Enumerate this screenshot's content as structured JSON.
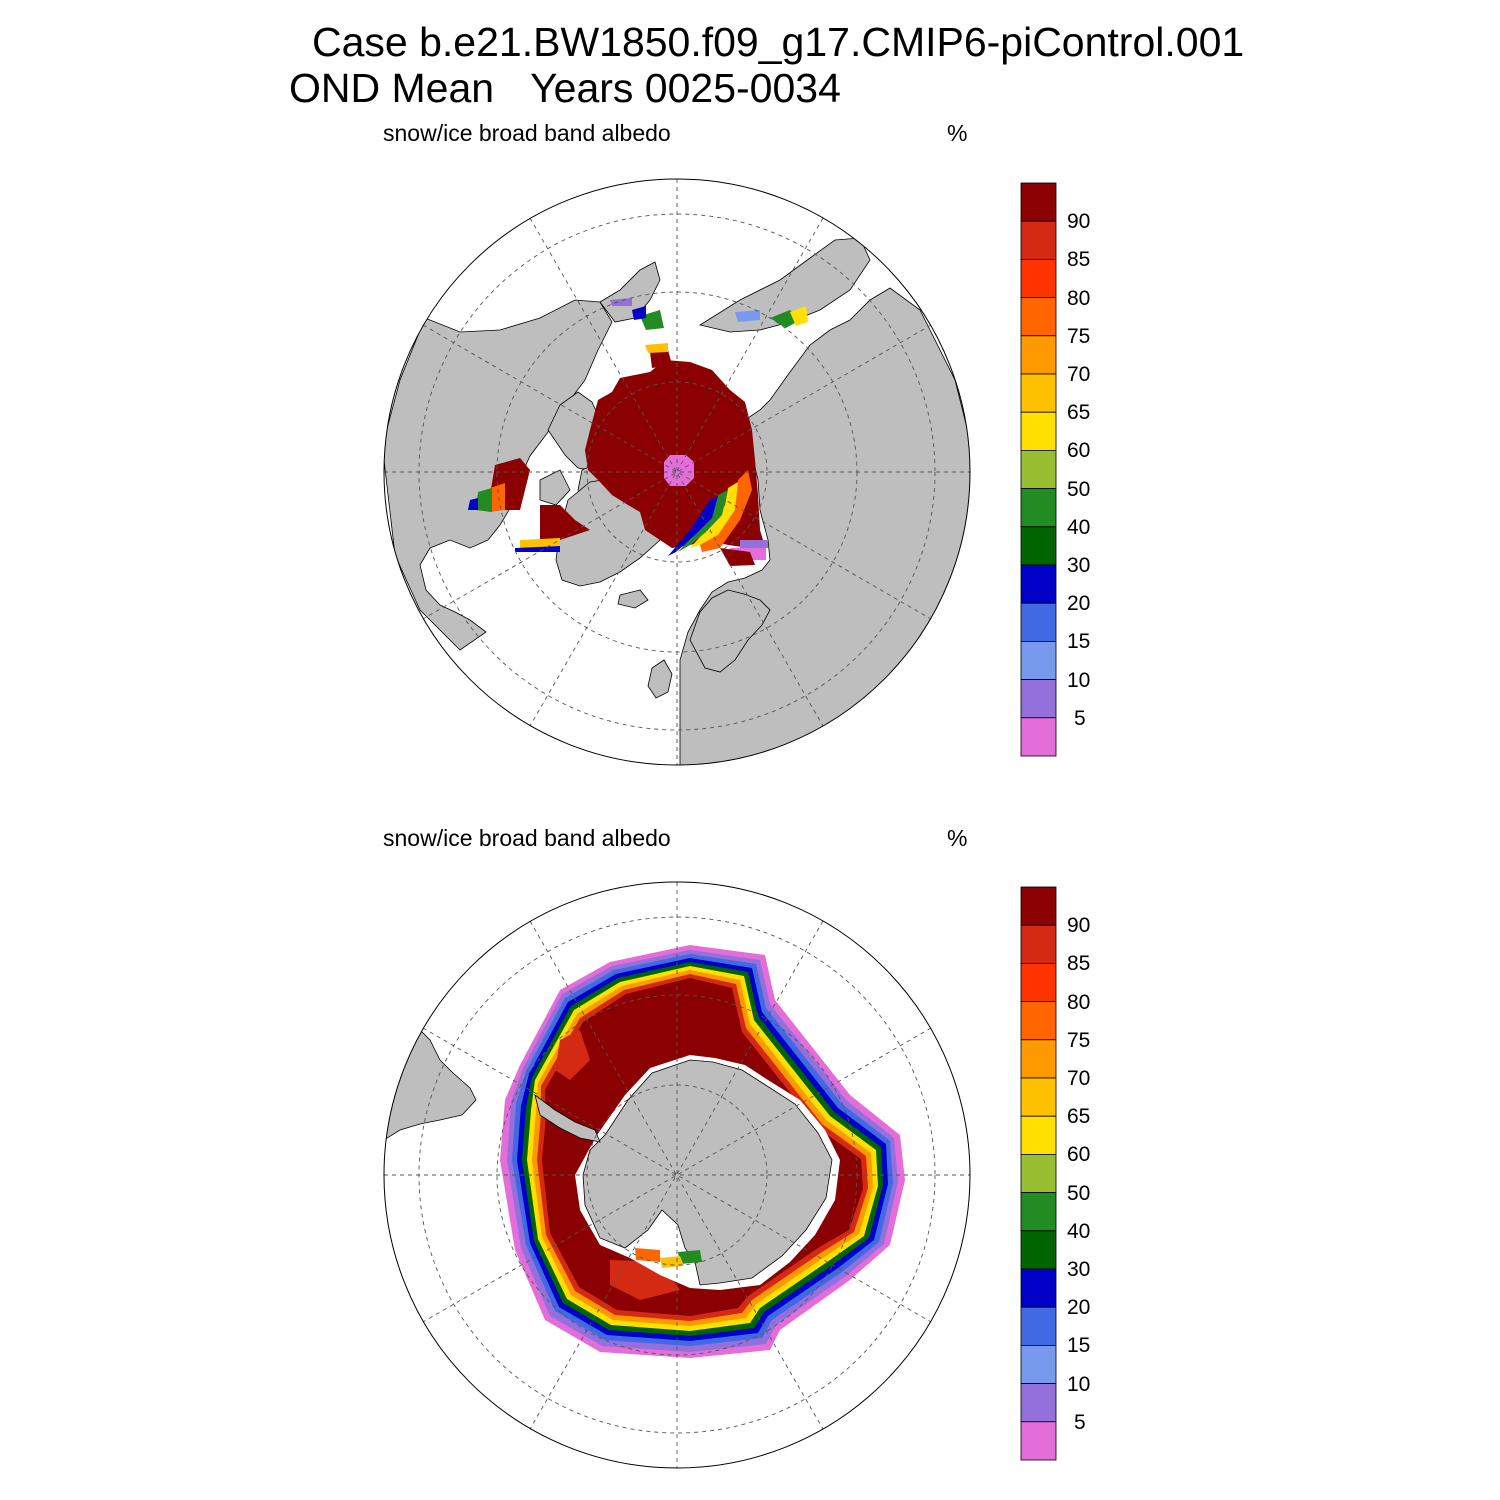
{
  "title": {
    "line1": "Case b.e21.BW1850.f09_g17.CMIP6-piControl.001",
    "season": "OND Mean",
    "years": "Years 0025-0034"
  },
  "panels": [
    {
      "hemisphere": "north",
      "variable_label": "snow/ice broad band albedo",
      "units": "%"
    },
    {
      "hemisphere": "south",
      "variable_label": "snow/ice broad band albedo",
      "units": "%"
    }
  ],
  "colorbar": {
    "labels": [
      "90",
      "85",
      "80",
      "75",
      "70",
      "65",
      "60",
      "50",
      "40",
      "30",
      "20",
      "15",
      "10",
      "5"
    ],
    "colors_top_to_bottom": [
      "#8b0000",
      "#d42a14",
      "#ff3300",
      "#ff6600",
      "#ff9900",
      "#ffc000",
      "#ffe000",
      "#9abe32",
      "#228b22",
      "#006400",
      "#0000c8",
      "#4169e1",
      "#7799ee",
      "#9370db",
      "#e36ed9"
    ]
  },
  "colors": {
    "land": "#bebebe",
    "ocean": "#ffffff",
    "graticule": "#555555"
  }
}
